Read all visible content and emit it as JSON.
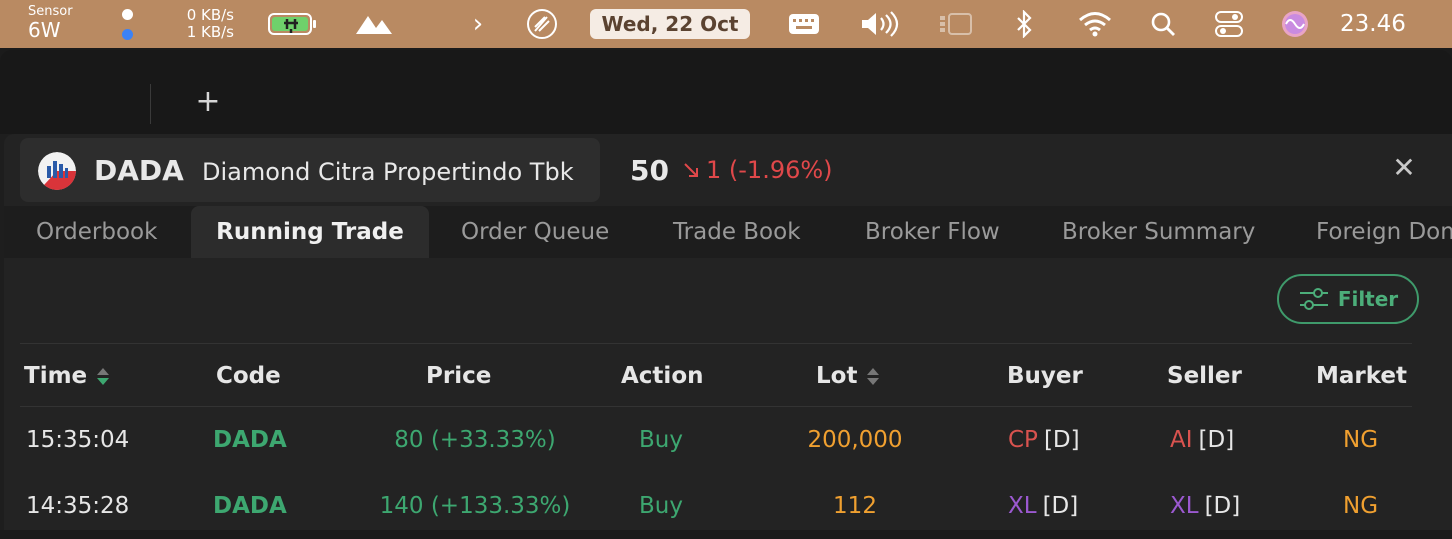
{
  "menubar": {
    "sensor_label": "Sensor",
    "sensor_value": "6W",
    "net_down": "0 KB/s",
    "net_up": "1 KB/s",
    "date": "Wed, 22 Oct",
    "time": "23.46",
    "colors": {
      "bar": "#b98a62",
      "dot_white": "#ffffff",
      "dot_blue": "#3b82f6"
    },
    "icons": [
      "battery-charging-icon",
      "mountains-icon",
      "chevron-right-icon",
      "rocket-icon",
      "keyboard-icon",
      "volume-icon",
      "stage-manager-icon",
      "bluetooth-icon",
      "wifi-icon",
      "search-icon",
      "control-center-icon",
      "siri-icon"
    ]
  },
  "window": {
    "add_tab": "+"
  },
  "stock": {
    "ticker": "DADA",
    "company": "Diamond Citra Propertindo Tbk",
    "price": "50",
    "change": "1 (-1.96%)",
    "change_color": "#e0484a",
    "close": "✕"
  },
  "tabs": [
    {
      "label": "Orderbook",
      "active": false
    },
    {
      "label": "Running Trade",
      "active": true
    },
    {
      "label": "Order Queue",
      "active": false
    },
    {
      "label": "Trade Book",
      "active": false
    },
    {
      "label": "Broker Flow",
      "active": false
    },
    {
      "label": "Broker Summary",
      "active": false
    },
    {
      "label": "Foreign Dom",
      "active": false
    }
  ],
  "filter": {
    "label": "Filter",
    "color": "#3f9a6b"
  },
  "table": {
    "headers": {
      "time": "Time",
      "code": "Code",
      "price": "Price",
      "action": "Action",
      "lot": "Lot",
      "buyer": "Buyer",
      "seller": "Seller",
      "market": "Market"
    },
    "rows": [
      {
        "time": "15:35:04",
        "code": "DADA",
        "price": "80 (+33.33%)",
        "action": "Buy",
        "lot": "200,000",
        "buyer_code": "CP",
        "buyer_type": "[D]",
        "seller_code": "AI",
        "seller_type": "[D]",
        "market": "NG"
      },
      {
        "time": "14:35:28",
        "code": "DADA",
        "price": "140 (+133.33%)",
        "action": "Buy",
        "lot": "112",
        "buyer_code": "XL",
        "buyer_type": "[D]",
        "seller_code": "XL",
        "seller_type": "[D]",
        "market": "NG"
      }
    ],
    "colors": {
      "buyer_row1": "#d9534f",
      "seller_row1": "#d9534f",
      "buyer_row2": "#9b59d0",
      "seller_row2": "#9b59d0"
    }
  }
}
